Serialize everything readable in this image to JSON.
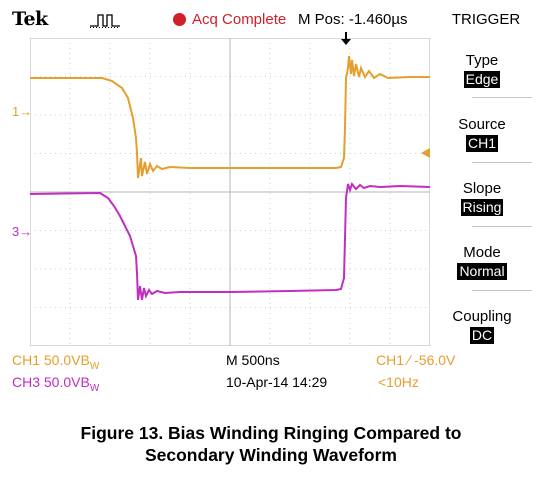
{
  "status_bar": {
    "brand": "Tek",
    "acq_status": "Acq Complete",
    "m_pos": "M Pos: -1.460µs"
  },
  "trigger_menu": {
    "title": "TRIGGER",
    "items": [
      {
        "label": "Type",
        "value": "Edge"
      },
      {
        "label": "Source",
        "value": "CH1"
      },
      {
        "label": "Slope",
        "value": "Rising"
      },
      {
        "label": "Mode",
        "value": "Normal"
      },
      {
        "label": "Coupling",
        "value": "DC"
      }
    ]
  },
  "markers": {
    "ch1": "1",
    "ch3": "3"
  },
  "readouts": {
    "ch1_scale": "CH1  50.0VB",
    "ch1_scale_suffix": "W",
    "ch3_scale": "CH3  50.0VB",
    "ch3_scale_suffix": "W",
    "timebase": "M 500ns",
    "date_time": "10-Apr-14 14:29",
    "trigger_level": "CH1 ∕ -56.0V",
    "trigger_freq": "<10Hz"
  },
  "caption": {
    "line1": "Figure 13. Bias Winding Ringing Compared to",
    "line2": "Secondary Winding Waveform"
  },
  "colors": {
    "ch1": "#e59f2c",
    "ch3": "#c02fbf",
    "acq": "#d0202a"
  }
}
